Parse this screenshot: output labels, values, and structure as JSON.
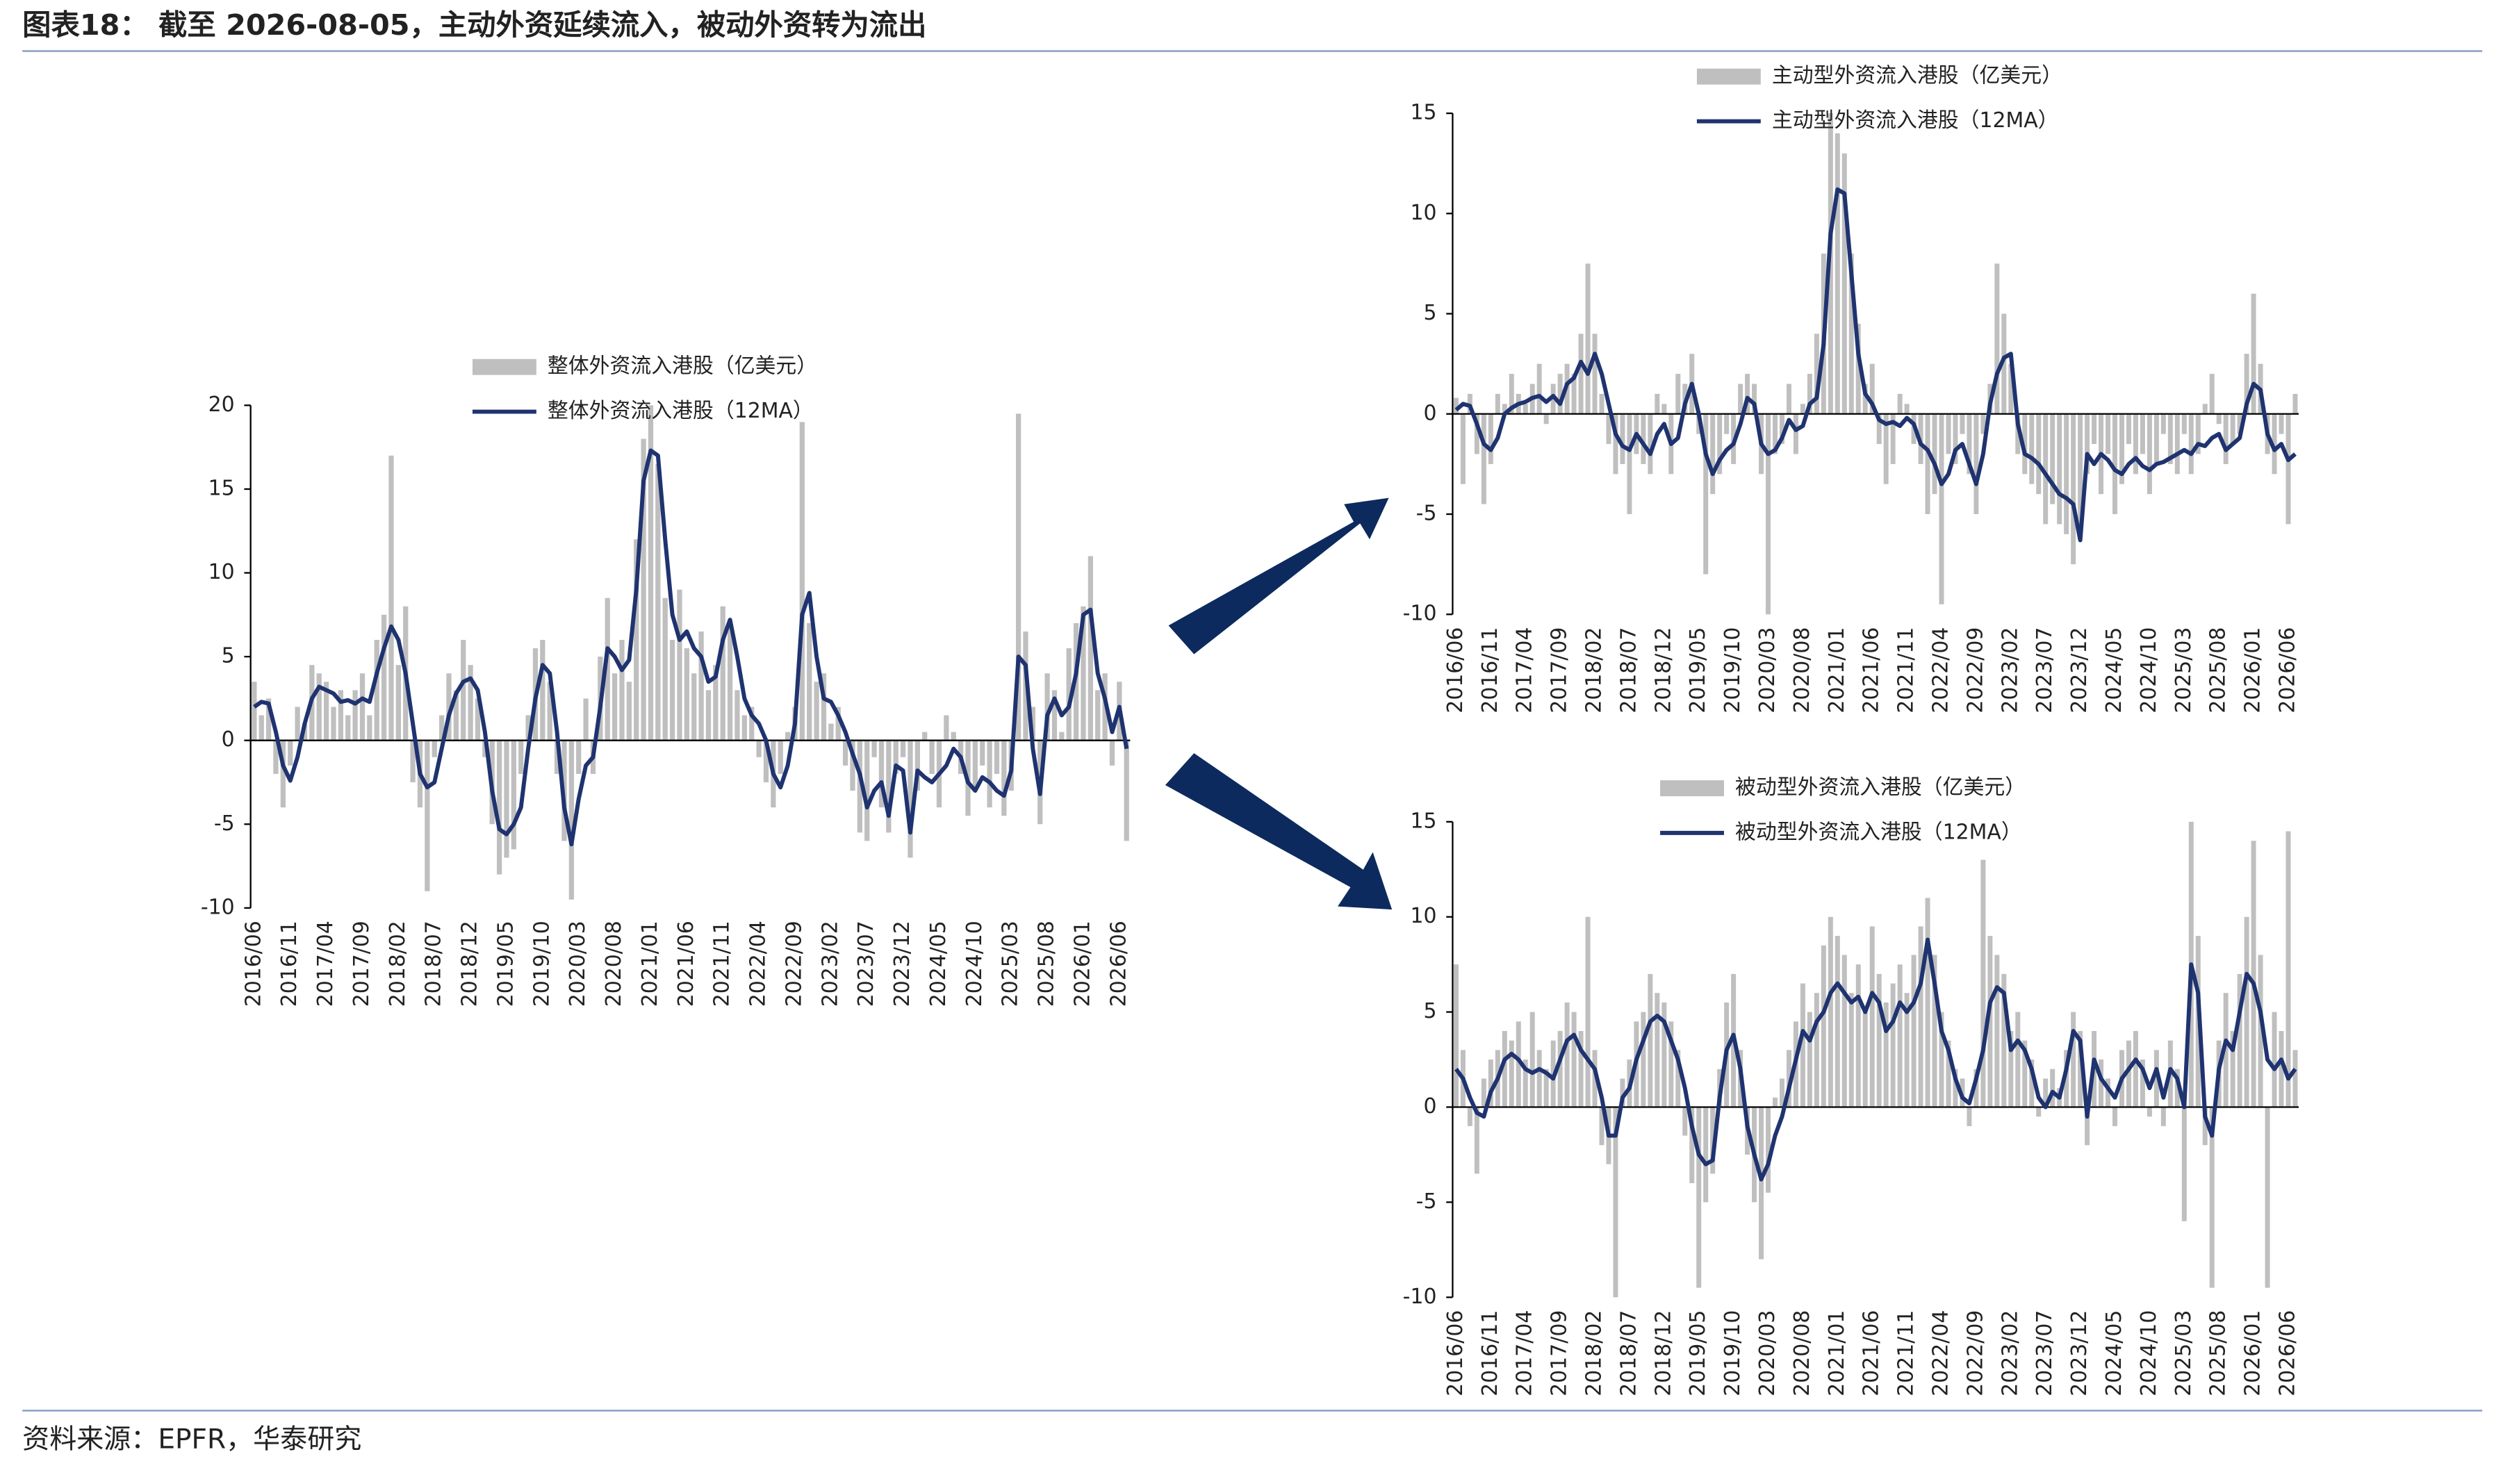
{
  "title": "图表18： 截至 2026-08-05，主动外资延续流入，被动外资转为流出",
  "source": "资料来源：EPFR，华泰研究",
  "chart_data": [
    {
      "type": "combo",
      "ylim": [
        -10,
        20
      ],
      "yticks": [
        -10,
        -5,
        0,
        5,
        10,
        15,
        20
      ],
      "categories": [
        "2016/06",
        null,
        null,
        null,
        null,
        "2016/11",
        null,
        null,
        null,
        null,
        "2017/04",
        null,
        null,
        null,
        null,
        "2017/09",
        null,
        null,
        null,
        null,
        "2018/02",
        null,
        null,
        null,
        null,
        "2018/07",
        null,
        null,
        null,
        null,
        "2018/12",
        null,
        null,
        null,
        null,
        "2019/05",
        null,
        null,
        null,
        null,
        "2019/10",
        null,
        null,
        null,
        null,
        "2020/03",
        null,
        null,
        null,
        null,
        "2020/08",
        null,
        null,
        null,
        null,
        "2021/01",
        null,
        null,
        null,
        null,
        "2021/06",
        null,
        null,
        null,
        null,
        "2021/11",
        null,
        null,
        null,
        null,
        "2022/04",
        null,
        null,
        null,
        null,
        "2022/09",
        null,
        null,
        null,
        null,
        "2023/02",
        null,
        null,
        null,
        null,
        "2023/07",
        null,
        null,
        null,
        null,
        "2023/12",
        null,
        null,
        null,
        null,
        "2024/05",
        null,
        null,
        null,
        null,
        "2024/10",
        null,
        null,
        null,
        null,
        "2025/03",
        null,
        null,
        null,
        null,
        "2025/08",
        null,
        null,
        null,
        null,
        "2026/01",
        null,
        null,
        null,
        null,
        "2026/06",
        null
      ],
      "series": [
        {
          "name": "整体外资流入港股（亿美元）",
          "mark": "bar",
          "color": "#bfbfbf",
          "values": [
            3.5,
            1.5,
            2.5,
            -2.0,
            -4.0,
            -1.5,
            2.0,
            1.0,
            4.5,
            4.0,
            3.5,
            2.0,
            3.0,
            1.5,
            3.0,
            4.0,
            1.5,
            6.0,
            7.5,
            17.0,
            4.5,
            8.0,
            -2.5,
            -4.0,
            -9.0,
            -1.0,
            1.5,
            4.0,
            3.0,
            6.0,
            4.5,
            2.5,
            -1.0,
            -5.0,
            -8.0,
            -7.0,
            -6.5,
            -2.0,
            1.5,
            5.5,
            6.0,
            3.5,
            -2.0,
            -6.0,
            -9.5,
            -2.0,
            2.5,
            -2.0,
            5.0,
            8.5,
            4.0,
            6.0,
            3.5,
            12.0,
            18.0,
            20.0,
            16.5,
            8.5,
            6.0,
            9.0,
            5.5,
            4.0,
            6.5,
            3.0,
            4.5,
            8.0,
            7.0,
            3.0,
            1.5,
            2.0,
            -1.0,
            -2.5,
            -4.0,
            -2.0,
            0.5,
            2.0,
            19.0,
            7.0,
            3.5,
            4.0,
            1.0,
            2.0,
            -1.5,
            -3.0,
            -5.5,
            -6.0,
            -1.0,
            -4.0,
            -5.5,
            -2.0,
            -1.0,
            -7.0,
            -3.0,
            0.5,
            -2.0,
            -4.0,
            1.5,
            0.5,
            -2.0,
            -4.5,
            -3.0,
            -1.5,
            -4.0,
            -2.0,
            -4.5,
            -3.0,
            19.5,
            6.5,
            2.0,
            -5.0,
            4.0,
            3.0,
            0.5,
            5.5,
            7.0,
            8.0,
            11.0,
            3.0,
            4.0,
            -1.5,
            3.5,
            -6.0
          ]
        },
        {
          "name": "整体外资流入港股（12MA）",
          "mark": "line",
          "color": "#1f3370",
          "values": [
            2.0,
            2.3,
            2.2,
            0.5,
            -1.5,
            -2.4,
            -1.0,
            1.0,
            2.5,
            3.2,
            3.0,
            2.8,
            2.3,
            2.4,
            2.2,
            2.5,
            2.3,
            4.0,
            5.5,
            6.8,
            6.0,
            4.0,
            1.0,
            -2.0,
            -2.8,
            -2.5,
            -0.5,
            1.5,
            2.8,
            3.5,
            3.7,
            3.0,
            0.5,
            -3.0,
            -5.3,
            -5.6,
            -5.0,
            -4.0,
            -0.5,
            2.5,
            4.5,
            4.0,
            0.5,
            -4.0,
            -6.2,
            -3.5,
            -1.5,
            -1.0,
            2.0,
            5.5,
            5.0,
            4.2,
            4.8,
            9.0,
            15.5,
            17.3,
            17.0,
            12.0,
            7.5,
            6.0,
            6.5,
            5.5,
            5.0,
            3.5,
            3.8,
            6.0,
            7.2,
            5.0,
            2.5,
            1.5,
            1.0,
            0.0,
            -2.0,
            -2.8,
            -1.5,
            1.0,
            7.5,
            8.8,
            5.0,
            2.5,
            2.3,
            1.5,
            0.5,
            -0.8,
            -2.0,
            -4.0,
            -3.0,
            -2.5,
            -4.5,
            -1.5,
            -1.8,
            -5.5,
            -1.8,
            -2.2,
            -2.5,
            -2.0,
            -1.5,
            -0.5,
            -1.0,
            -2.5,
            -3.0,
            -2.2,
            -2.5,
            -3.0,
            -3.3,
            -1.8,
            5.0,
            4.5,
            -0.5,
            -3.2,
            1.5,
            2.5,
            1.5,
            2.0,
            4.0,
            7.5,
            7.8,
            4.0,
            2.5,
            0.5,
            2.0,
            -0.5
          ]
        }
      ]
    },
    {
      "type": "combo",
      "ylim": [
        -10,
        15
      ],
      "yticks": [
        -10,
        -5,
        0,
        5,
        10,
        15
      ],
      "categories": [
        "2016/06",
        null,
        null,
        null,
        null,
        "2016/11",
        null,
        null,
        null,
        null,
        "2017/04",
        null,
        null,
        null,
        null,
        "2017/09",
        null,
        null,
        null,
        null,
        "2018/02",
        null,
        null,
        null,
        null,
        "2018/07",
        null,
        null,
        null,
        null,
        "2018/12",
        null,
        null,
        null,
        null,
        "2019/05",
        null,
        null,
        null,
        null,
        "2019/10",
        null,
        null,
        null,
        null,
        "2020/03",
        null,
        null,
        null,
        null,
        "2020/08",
        null,
        null,
        null,
        null,
        "2021/01",
        null,
        null,
        null,
        null,
        "2021/06",
        null,
        null,
        null,
        null,
        "2021/11",
        null,
        null,
        null,
        null,
        "2022/04",
        null,
        null,
        null,
        null,
        "2022/09",
        null,
        null,
        null,
        null,
        "2023/02",
        null,
        null,
        null,
        null,
        "2023/07",
        null,
        null,
        null,
        null,
        "2023/12",
        null,
        null,
        null,
        null,
        "2024/05",
        null,
        null,
        null,
        null,
        "2024/10",
        null,
        null,
        null,
        null,
        "2025/03",
        null,
        null,
        null,
        null,
        "2025/08",
        null,
        null,
        null,
        null,
        "2026/01",
        null,
        null,
        null,
        null,
        "2026/06",
        null
      ],
      "series": [
        {
          "name": "主动型外资流入港股（亿美元）",
          "mark": "bar",
          "color": "#bfbfbf",
          "values": [
            0.8,
            -3.5,
            1.0,
            -2.0,
            -4.5,
            -2.5,
            1.0,
            0.5,
            2.0,
            1.0,
            0.5,
            1.5,
            2.5,
            -0.5,
            1.5,
            2.0,
            2.5,
            2.0,
            4.0,
            7.5,
            4.0,
            1.0,
            -1.5,
            -3.0,
            -2.5,
            -5.0,
            -2.0,
            -2.5,
            -3.0,
            1.0,
            0.5,
            -3.0,
            2.0,
            1.5,
            3.0,
            -1.0,
            -8.0,
            -4.0,
            -3.0,
            -1.0,
            -2.5,
            1.5,
            2.0,
            1.5,
            -3.0,
            -10.0,
            -2.0,
            -1.5,
            1.5,
            -2.0,
            0.5,
            2.0,
            4.0,
            8.0,
            15.0,
            14.0,
            13.0,
            8.0,
            4.5,
            1.5,
            2.5,
            -1.5,
            -3.5,
            -2.5,
            1.0,
            0.5,
            -1.5,
            -2.5,
            -5.0,
            -4.0,
            -9.5,
            -2.0,
            -2.5,
            -1.0,
            -3.0,
            -5.0,
            -1.0,
            1.5,
            7.5,
            5.0,
            2.5,
            -2.0,
            -3.0,
            -3.5,
            -4.0,
            -5.5,
            -4.5,
            -5.5,
            -6.0,
            -7.5,
            -6.0,
            -3.0,
            -1.5,
            -4.0,
            -2.0,
            -5.0,
            -3.5,
            -1.5,
            -3.0,
            -2.0,
            -4.0,
            -2.5,
            -1.0,
            -2.5,
            -3.0,
            -1.0,
            -3.0,
            -2.0,
            0.5,
            2.0,
            -0.5,
            -2.5,
            -1.5,
            -1.0,
            3.0,
            6.0,
            2.5,
            -2.0,
            -3.0,
            -1.0,
            -5.5,
            1.0
          ]
        },
        {
          "name": "主动型外资流入港股（12MA）",
          "mark": "line",
          "color": "#1f3370",
          "values": [
            0.2,
            0.5,
            0.4,
            -0.5,
            -1.5,
            -1.8,
            -1.2,
            0.0,
            0.3,
            0.5,
            0.6,
            0.8,
            0.9,
            0.6,
            0.9,
            0.5,
            1.5,
            1.8,
            2.6,
            2.0,
            3.0,
            2.0,
            0.5,
            -1.0,
            -1.6,
            -1.8,
            -1.0,
            -1.5,
            -2.0,
            -1.0,
            -0.5,
            -1.5,
            -1.2,
            0.5,
            1.5,
            0.0,
            -2.0,
            -3.0,
            -2.3,
            -1.8,
            -1.5,
            -0.5,
            0.8,
            0.5,
            -1.5,
            -2.0,
            -1.8,
            -1.2,
            -0.3,
            -0.8,
            -0.6,
            0.5,
            0.8,
            3.5,
            9.0,
            11.2,
            11.0,
            7.0,
            3.0,
            1.0,
            0.5,
            -0.3,
            -0.5,
            -0.4,
            -0.6,
            -0.2,
            -0.5,
            -1.5,
            -1.8,
            -2.5,
            -3.5,
            -3.0,
            -1.8,
            -1.5,
            -2.5,
            -3.5,
            -2.0,
            0.5,
            2.0,
            2.8,
            3.0,
            -0.5,
            -2.0,
            -2.2,
            -2.5,
            -3.0,
            -3.5,
            -4.0,
            -4.2,
            -4.5,
            -6.3,
            -2.0,
            -2.5,
            -2.0,
            -2.3,
            -2.8,
            -3.0,
            -2.5,
            -2.2,
            -2.6,
            -2.8,
            -2.5,
            -2.4,
            -2.2,
            -2.0,
            -1.8,
            -2.0,
            -1.5,
            -1.6,
            -1.2,
            -1.0,
            -1.8,
            -1.5,
            -1.2,
            0.5,
            1.5,
            1.2,
            -1.0,
            -1.8,
            -1.5,
            -2.3,
            -2.0
          ]
        }
      ]
    },
    {
      "type": "combo",
      "ylim": [
        -10,
        15
      ],
      "yticks": [
        -10,
        -5,
        0,
        5,
        10,
        15
      ],
      "categories": [
        "2016/06",
        null,
        null,
        null,
        null,
        "2016/11",
        null,
        null,
        null,
        null,
        "2017/04",
        null,
        null,
        null,
        null,
        "2017/09",
        null,
        null,
        null,
        null,
        "2018/02",
        null,
        null,
        null,
        null,
        "2018/07",
        null,
        null,
        null,
        null,
        "2018/12",
        null,
        null,
        null,
        null,
        "2019/05",
        null,
        null,
        null,
        null,
        "2019/10",
        null,
        null,
        null,
        null,
        "2020/03",
        null,
        null,
        null,
        null,
        "2020/08",
        null,
        null,
        null,
        null,
        "2021/01",
        null,
        null,
        null,
        null,
        "2021/06",
        null,
        null,
        null,
        null,
        "2021/11",
        null,
        null,
        null,
        null,
        "2022/04",
        null,
        null,
        null,
        null,
        "2022/09",
        null,
        null,
        null,
        null,
        "2023/02",
        null,
        null,
        null,
        null,
        "2023/07",
        null,
        null,
        null,
        null,
        "2023/12",
        null,
        null,
        null,
        null,
        "2024/05",
        null,
        null,
        null,
        null,
        "2024/10",
        null,
        null,
        null,
        null,
        "2025/03",
        null,
        null,
        null,
        null,
        "2025/08",
        null,
        null,
        null,
        null,
        "2026/01",
        null,
        null,
        null,
        null,
        "2026/06",
        null
      ],
      "series": [
        {
          "name": "被动型外资流入港股（亿美元）",
          "mark": "bar",
          "color": "#bfbfbf",
          "values": [
            7.5,
            3.0,
            -1.0,
            -3.5,
            1.5,
            2.5,
            3.0,
            4.0,
            3.5,
            4.5,
            2.5,
            5.0,
            3.0,
            2.0,
            3.5,
            4.0,
            5.5,
            5.0,
            4.0,
            10.0,
            3.0,
            -2.0,
            -3.0,
            -10.0,
            1.5,
            2.5,
            4.5,
            5.0,
            7.0,
            6.0,
            5.5,
            4.5,
            3.0,
            -1.5,
            -4.0,
            -9.5,
            -5.0,
            -3.5,
            2.0,
            5.5,
            7.0,
            3.0,
            -2.5,
            -5.0,
            -8.0,
            -4.5,
            0.5,
            1.5,
            3.0,
            4.5,
            6.5,
            5.0,
            6.0,
            8.5,
            10.0,
            9.0,
            8.0,
            6.0,
            7.5,
            5.0,
            9.5,
            7.0,
            5.5,
            6.5,
            7.5,
            6.0,
            8.0,
            9.5,
            11.0,
            8.0,
            5.0,
            3.5,
            2.0,
            1.5,
            -1.0,
            2.0,
            13.0,
            9.0,
            8.0,
            7.0,
            4.0,
            5.0,
            3.5,
            2.5,
            -0.5,
            1.5,
            2.0,
            1.0,
            3.0,
            5.0,
            4.0,
            -2.0,
            4.0,
            2.5,
            1.5,
            -1.0,
            3.0,
            3.5,
            4.0,
            2.5,
            -0.5,
            3.0,
            -1.0,
            3.5,
            2.0,
            -6.0,
            15.0,
            9.0,
            -2.0,
            -9.5,
            3.5,
            6.0,
            4.0,
            7.0,
            10.0,
            14.0,
            8.0,
            -9.5,
            5.0,
            4.0,
            14.5,
            3.0
          ]
        },
        {
          "name": "被动型外资流入港股（12MA）",
          "mark": "line",
          "color": "#1f3370",
          "values": [
            2.0,
            1.5,
            0.5,
            -0.3,
            -0.5,
            0.8,
            1.5,
            2.5,
            2.8,
            2.5,
            2.0,
            1.8,
            2.0,
            1.8,
            1.5,
            2.5,
            3.5,
            3.8,
            3.0,
            2.5,
            2.0,
            0.5,
            -1.5,
            -1.5,
            0.5,
            1.0,
            2.5,
            3.5,
            4.5,
            4.8,
            4.5,
            3.5,
            2.5,
            1.0,
            -1.0,
            -2.5,
            -3.0,
            -2.8,
            0.5,
            3.0,
            3.8,
            2.0,
            -1.0,
            -2.5,
            -3.8,
            -3.0,
            -1.5,
            -0.5,
            1.0,
            2.5,
            4.0,
            3.5,
            4.5,
            5.0,
            6.0,
            6.5,
            6.0,
            5.5,
            5.8,
            5.0,
            6.0,
            5.5,
            4.0,
            4.5,
            5.5,
            5.0,
            5.5,
            6.5,
            8.8,
            6.5,
            4.0,
            3.0,
            1.5,
            0.5,
            0.2,
            1.5,
            3.0,
            5.5,
            6.3,
            6.0,
            3.0,
            3.5,
            3.0,
            2.0,
            0.5,
            0.0,
            0.8,
            0.5,
            2.0,
            4.0,
            3.5,
            -0.5,
            2.5,
            1.5,
            1.0,
            0.5,
            1.5,
            2.0,
            2.5,
            2.0,
            1.0,
            2.0,
            0.5,
            2.0,
            1.5,
            0.0,
            7.5,
            6.0,
            -0.5,
            -1.5,
            2.0,
            3.5,
            3.0,
            5.0,
            7.0,
            6.5,
            5.0,
            2.5,
            2.0,
            2.5,
            1.5,
            2.0
          ]
        }
      ]
    }
  ]
}
